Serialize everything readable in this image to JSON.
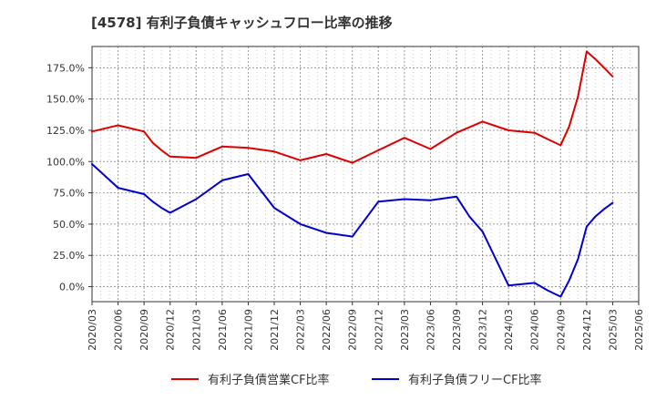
{
  "chart_data": {
    "type": "line",
    "title": "[4578]  有利子負債キャッシュフロー比率の推移",
    "x_ticks": [
      "2020/03",
      "2020/06",
      "2020/09",
      "2020/12",
      "2021/03",
      "2021/06",
      "2021/09",
      "2021/12",
      "2022/03",
      "2022/06",
      "2022/09",
      "2022/12",
      "2023/03",
      "2023/06",
      "2023/09",
      "2023/12",
      "2024/03",
      "2024/06",
      "2024/09",
      "2024/12",
      "2025/03",
      "2025/06"
    ],
    "y_ticks": [
      "0.0%",
      "25.0%",
      "50.0%",
      "75.0%",
      "100.0%",
      "125.0%",
      "150.0%",
      "175.0%"
    ],
    "ylim": [
      -12,
      192
    ],
    "grid": true,
    "legend_position": "bottom",
    "series": [
      {
        "name": "有利子負債営業CF比率",
        "color": "#dd0000",
        "x": [
          0,
          1,
          2,
          2.33,
          2.67,
          3,
          4,
          5,
          6,
          7,
          8,
          9,
          10,
          11,
          12,
          13,
          14,
          15,
          16,
          17,
          17.5,
          18,
          18.33,
          18.67,
          19,
          19.33,
          19.67,
          20
        ],
        "y": [
          124,
          129,
          124,
          115,
          109,
          104,
          103,
          112,
          111,
          108,
          101,
          106,
          99,
          109,
          119,
          110,
          123,
          132,
          125,
          123,
          118,
          113,
          128,
          152,
          188,
          182,
          175,
          168
        ]
      },
      {
        "name": "有利子負債フリーCF比率",
        "color": "#0000cc",
        "x": [
          0,
          1,
          2,
          2.33,
          2.67,
          3,
          4,
          5,
          6,
          7,
          8,
          9,
          10,
          11,
          12,
          13,
          14,
          14.5,
          15,
          16,
          17,
          17.5,
          18,
          18.33,
          18.67,
          19,
          19.33,
          19.67,
          20
        ],
        "y": [
          98,
          79,
          74,
          68,
          63,
          59,
          70,
          85,
          90,
          63,
          50,
          43,
          40,
          68,
          70,
          69,
          72,
          56,
          44,
          1,
          3,
          -3,
          -8,
          5,
          22,
          48,
          56,
          62,
          67
        ]
      }
    ]
  }
}
